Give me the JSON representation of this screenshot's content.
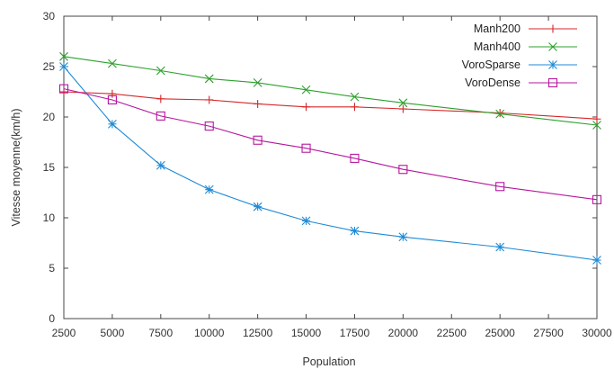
{
  "chart_data": {
    "type": "line",
    "xlabel": "Population",
    "ylabel": "Vitesse moyenne(km/h)",
    "xlim": [
      2500,
      30000
    ],
    "ylim": [
      0,
      30
    ],
    "xticks": [
      2500,
      5000,
      7500,
      10000,
      12500,
      15000,
      17500,
      20000,
      22500,
      25000,
      27500,
      30000
    ],
    "yticks": [
      0,
      5,
      10,
      15,
      20,
      25,
      30
    ],
    "legend_position": "top-right",
    "grid": false,
    "series": [
      {
        "name": "Manh200",
        "color": "#d62728",
        "marker": "plus",
        "x": [
          2500,
          5000,
          7500,
          10000,
          12500,
          15000,
          17500,
          20000,
          25000,
          30000
        ],
        "y": [
          22.5,
          22.3,
          21.8,
          21.7,
          21.3,
          21.0,
          21.0,
          20.8,
          20.4,
          19.8
        ]
      },
      {
        "name": "Manh400",
        "color": "#2ca02c",
        "marker": "cross",
        "x": [
          2500,
          5000,
          7500,
          10000,
          12500,
          15000,
          17500,
          20000,
          25000,
          30000
        ],
        "y": [
          26.0,
          25.3,
          24.6,
          23.8,
          23.4,
          22.7,
          22.0,
          21.4,
          20.3,
          19.2
        ]
      },
      {
        "name": "VoroSparse",
        "color": "#1f8ad6",
        "marker": "star",
        "x": [
          2500,
          5000,
          7500,
          10000,
          12500,
          15000,
          17500,
          20000,
          25000,
          30000
        ],
        "y": [
          25.0,
          19.3,
          15.2,
          12.8,
          11.1,
          9.7,
          8.7,
          8.1,
          7.1,
          5.8
        ]
      },
      {
        "name": "VoroDense",
        "color": "#b5179e",
        "marker": "square",
        "x": [
          2500,
          5000,
          7500,
          10000,
          12500,
          15000,
          17500,
          20000,
          25000,
          30000
        ],
        "y": [
          22.8,
          21.7,
          20.1,
          19.1,
          17.7,
          16.9,
          15.9,
          14.8,
          13.1,
          11.8
        ]
      }
    ]
  }
}
